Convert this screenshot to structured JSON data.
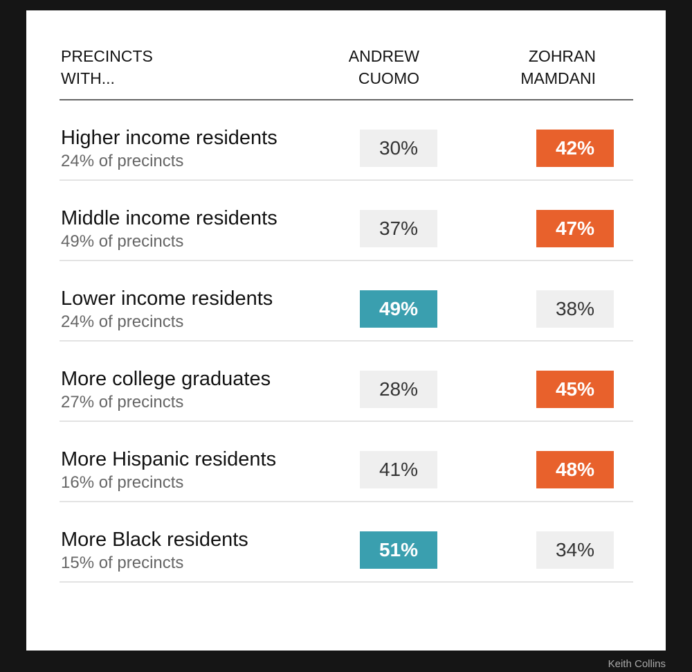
{
  "header": {
    "label": "PRECINCTS\nWITH...",
    "cuomo": "ANDREW\nCUOMO",
    "mamdani": "ZOHRAN\nMAMDANI"
  },
  "colors": {
    "cuomo_win": "#3a9faf",
    "mamdani_win": "#e8612c",
    "neutral": "#efefef"
  },
  "chart_data": {
    "type": "table",
    "columns": [
      "Andrew Cuomo",
      "Zohran Mamdani"
    ],
    "rows": [
      {
        "label": "Higher income residents",
        "sub": "24% of precincts",
        "cuomo": 30,
        "mamdani": 42,
        "cuomo_text": "30%",
        "mamdani_text": "42%",
        "winner": "mamdani"
      },
      {
        "label": "Middle income residents",
        "sub": "49% of precincts",
        "cuomo": 37,
        "mamdani": 47,
        "cuomo_text": "37%",
        "mamdani_text": "47%",
        "winner": "mamdani"
      },
      {
        "label": "Lower income residents",
        "sub": "24% of precincts",
        "cuomo": 49,
        "mamdani": 38,
        "cuomo_text": "49%",
        "mamdani_text": "38%",
        "winner": "cuomo"
      },
      {
        "label": "More college graduates",
        "sub": "27% of precincts",
        "cuomo": 28,
        "mamdani": 45,
        "cuomo_text": "28%",
        "mamdani_text": "45%",
        "winner": "mamdani"
      },
      {
        "label": "More Hispanic residents",
        "sub": "16% of precincts",
        "cuomo": 41,
        "mamdani": 48,
        "cuomo_text": "41%",
        "mamdani_text": "48%",
        "winner": "mamdani"
      },
      {
        "label": "More Black residents",
        "sub": "15% of precincts",
        "cuomo": 51,
        "mamdani": 34,
        "cuomo_text": "51%",
        "mamdani_text": "34%",
        "winner": "cuomo"
      }
    ]
  },
  "credit": "Keith Collins"
}
